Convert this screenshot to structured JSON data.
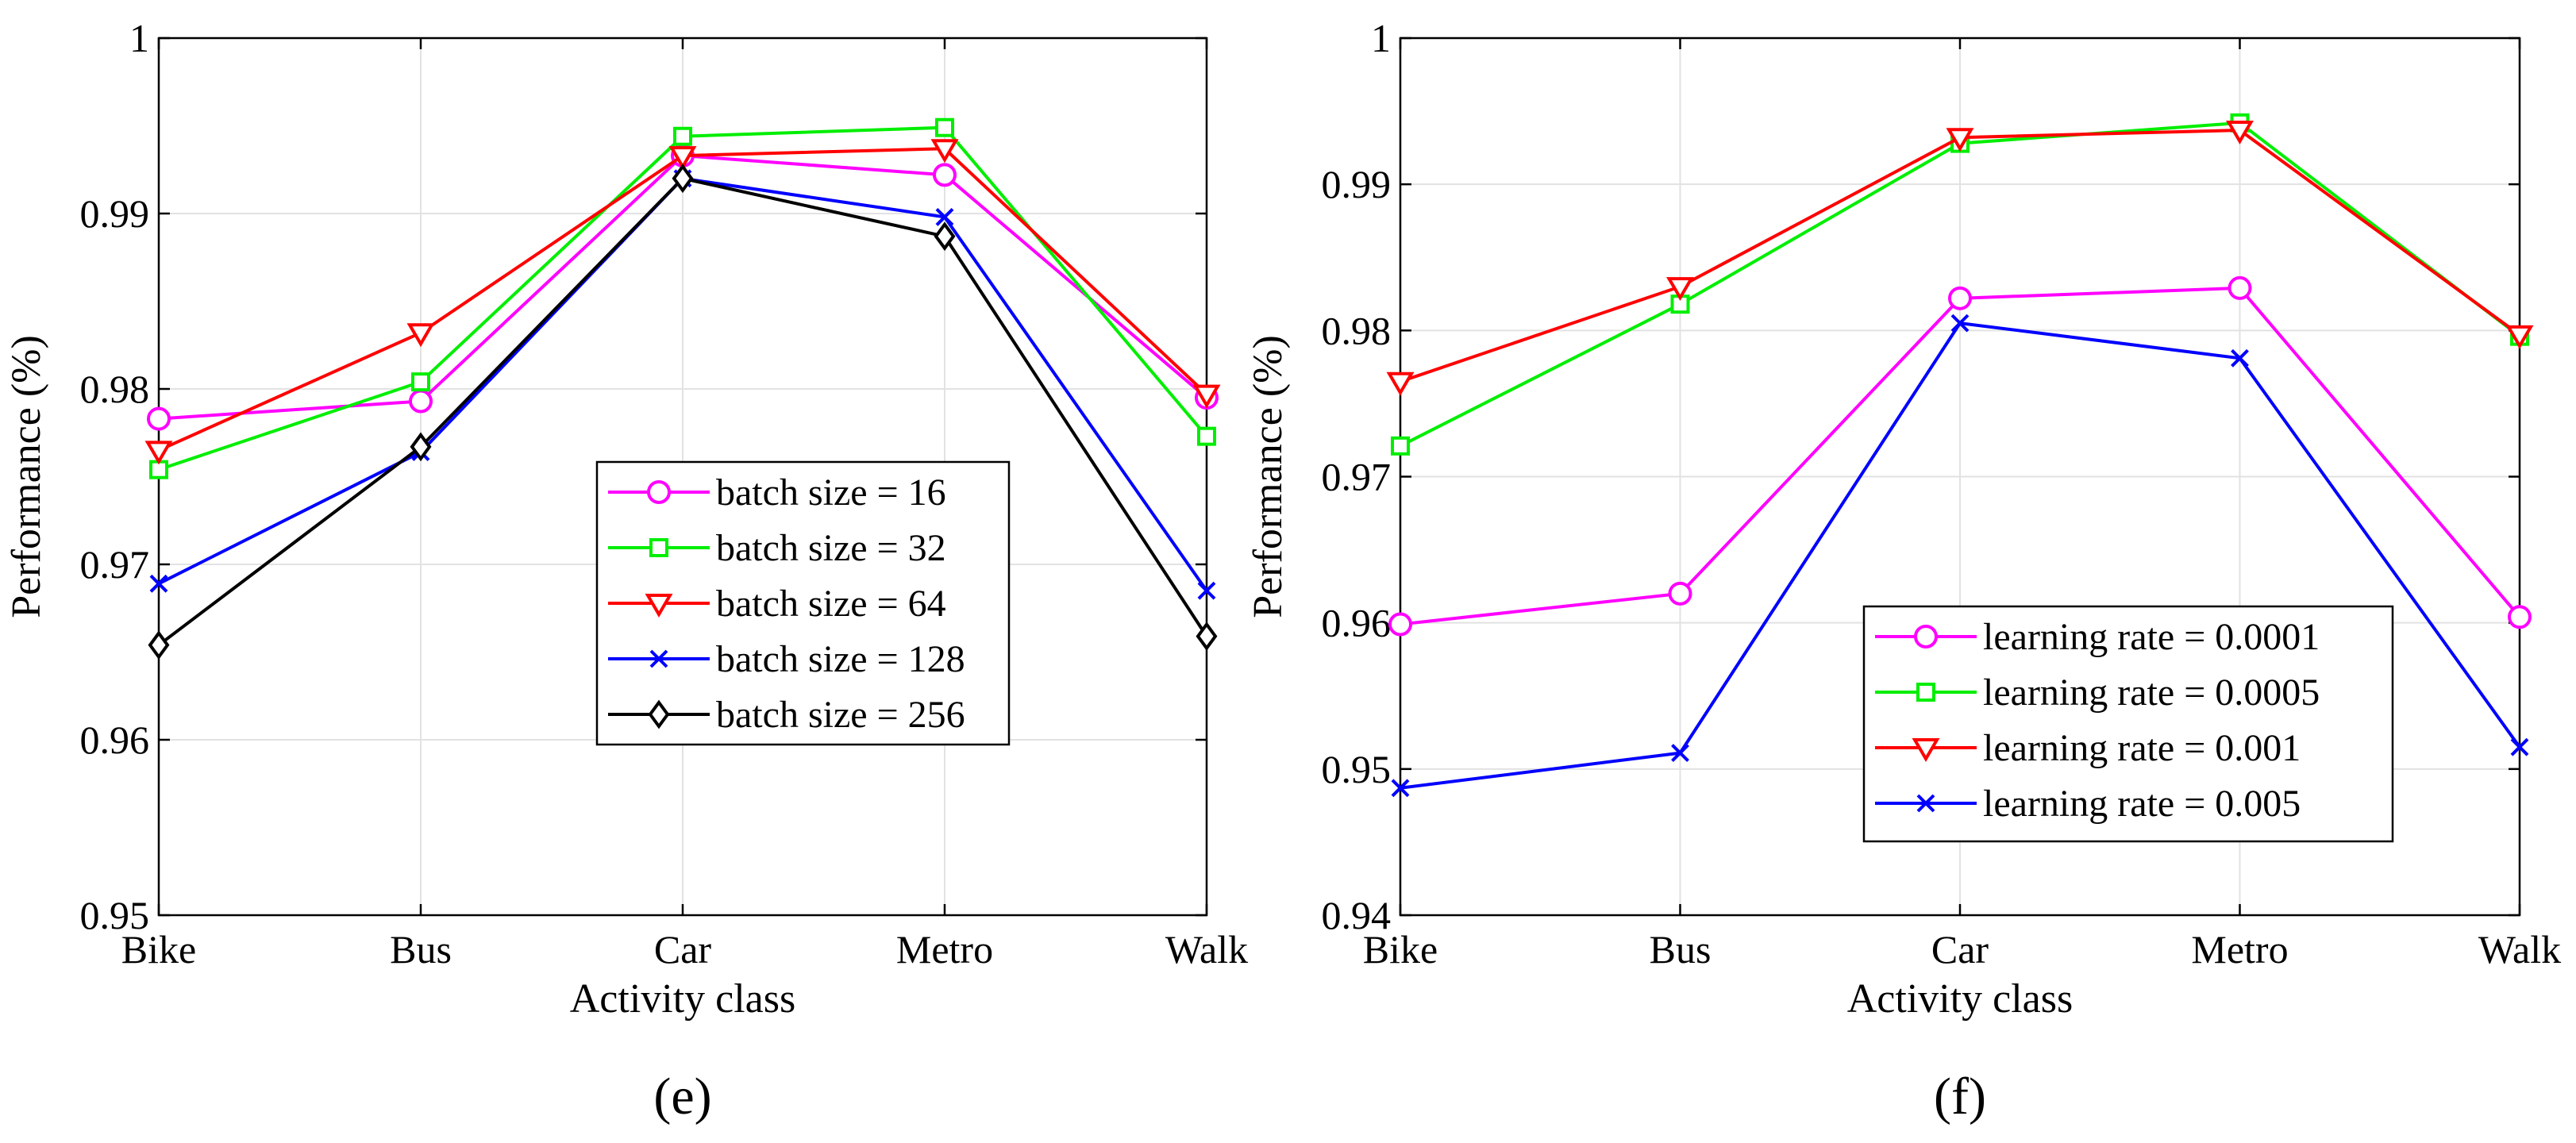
{
  "chart_data": [
    {
      "type": "line",
      "panel_label": "(e)",
      "categories": [
        "Bike",
        "Bus",
        "Car",
        "Metro",
        "Walk"
      ],
      "xlabel": "Activity class",
      "ylabel": "Performance (%)",
      "ylim": [
        0.95,
        1.0
      ],
      "yticks": [
        0.95,
        0.96,
        0.97,
        0.98,
        0.99,
        1.0
      ],
      "ytick_labels": [
        "0.95",
        "0.96",
        "0.97",
        "0.98",
        "0.99",
        "1"
      ],
      "grid": true,
      "legend_position": "center-right",
      "series": [
        {
          "name": "batch size = 16",
          "color": "#ff00ff",
          "marker": "circle",
          "values": [
            0.9783,
            0.9793,
            0.9933,
            0.9922,
            0.9795
          ]
        },
        {
          "name": "batch size = 32",
          "color": "#00ee00",
          "marker": "square",
          "values": [
            0.9754,
            0.9804,
            0.9944,
            0.9949,
            0.9773
          ]
        },
        {
          "name": "batch size = 64",
          "color": "#ff0000",
          "marker": "triangle-down",
          "values": [
            0.9765,
            0.9832,
            0.9933,
            0.9937,
            0.9797
          ]
        },
        {
          "name": "batch size = 128",
          "color": "#0000ff",
          "marker": "x",
          "values": [
            0.9689,
            0.9764,
            0.992,
            0.9898,
            0.9685
          ]
        },
        {
          "name": "batch size = 256",
          "color": "#000000",
          "marker": "diamond",
          "values": [
            0.9654,
            0.9767,
            0.992,
            0.9887,
            0.9659
          ]
        }
      ]
    },
    {
      "type": "line",
      "panel_label": "(f)",
      "categories": [
        "Bike",
        "Bus",
        "Car",
        "Metro",
        "Walk"
      ],
      "xlabel": "Activity class",
      "ylabel": "Performance (%)",
      "ylim": [
        0.94,
        1.0
      ],
      "yticks": [
        0.94,
        0.95,
        0.96,
        0.97,
        0.98,
        0.99,
        1.0
      ],
      "ytick_labels": [
        "0.94",
        "0.95",
        "0.96",
        "0.97",
        "0.98",
        "0.99",
        "1"
      ],
      "grid": true,
      "legend_position": "lower-right",
      "series": [
        {
          "name": "learning rate = 0.0001",
          "color": "#ff00ff",
          "marker": "circle",
          "values": [
            0.9599,
            0.962,
            0.9822,
            0.9829,
            0.9604
          ]
        },
        {
          "name": "learning rate = 0.0005",
          "color": "#00ee00",
          "marker": "square",
          "values": [
            0.9721,
            0.9818,
            0.9928,
            0.9942,
            0.9796
          ]
        },
        {
          "name": "learning rate = 0.001",
          "color": "#ff0000",
          "marker": "triangle-down",
          "values": [
            0.9765,
            0.983,
            0.9932,
            0.9937,
            0.9797
          ]
        },
        {
          "name": "learning rate = 0.005",
          "color": "#0000ff",
          "marker": "x",
          "values": [
            0.9487,
            0.9511,
            0.9805,
            0.9781,
            0.9515
          ]
        }
      ]
    }
  ]
}
